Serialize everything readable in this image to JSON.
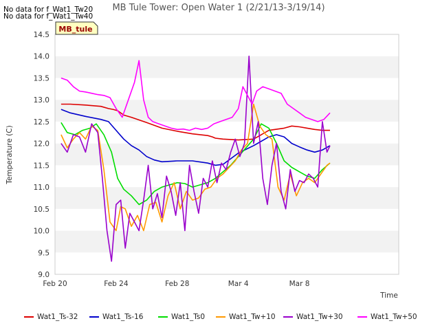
{
  "no_data_messages": [
    "No data for f_Wat1_Tw20",
    "No data for f_Wat1_Tw40"
  ],
  "site_badge": "MB_tule",
  "chart_data": {
    "type": "line",
    "title": "MB Tule Tower: Open Water 1 (2/21/13-3/19/14)",
    "xlabel": "Time",
    "ylabel": "Temperature (C)",
    "xlim": [
      0,
      22.5
    ],
    "ylim": [
      9.0,
      14.5
    ],
    "x_ticks": [
      {
        "value": 0,
        "label": "Feb 20"
      },
      {
        "value": 4,
        "label": "Feb 24"
      },
      {
        "value": 8,
        "label": "Feb 28"
      },
      {
        "value": 12,
        "label": "Mar 4"
      },
      {
        "value": 16,
        "label": "Mar 8"
      }
    ],
    "y_ticks": [
      9.0,
      9.5,
      10.0,
      10.5,
      11.0,
      11.5,
      12.0,
      12.5,
      13.0,
      13.5,
      14.0,
      14.5
    ],
    "grid": "horizontal bands",
    "legend_position": "bottom",
    "series": [
      {
        "name": "Wat1_Ts-32",
        "color": "#dd0000",
        "x": [
          0.4,
          1,
          2,
          3,
          3.5,
          3.8,
          4.1,
          4.5,
          5,
          6,
          7,
          8,
          9,
          10,
          10.3,
          10.5,
          11,
          12,
          13,
          14,
          15,
          15.5,
          16,
          16.5,
          17,
          17.5,
          18
        ],
        "y": [
          12.9,
          12.9,
          12.88,
          12.85,
          12.8,
          12.78,
          12.75,
          12.65,
          12.6,
          12.48,
          12.35,
          12.28,
          12.22,
          12.18,
          12.15,
          12.12,
          12.1,
          12.08,
          12.1,
          12.3,
          12.35,
          12.4,
          12.38,
          12.35,
          12.32,
          12.3,
          12.3
        ]
      },
      {
        "name": "Wat1_Ts-16",
        "color": "#0000cc",
        "x": [
          0.4,
          1,
          2,
          3,
          3.5,
          4,
          4.5,
          5,
          5.5,
          6,
          6.5,
          7,
          8,
          9,
          10,
          10.5,
          11,
          12,
          13,
          13.5,
          14,
          14.5,
          15,
          15.5,
          16,
          16.5,
          17,
          17.5,
          18
        ],
        "y": [
          12.78,
          12.7,
          12.62,
          12.55,
          12.5,
          12.3,
          12.1,
          11.95,
          11.85,
          11.7,
          11.62,
          11.58,
          11.6,
          11.6,
          11.55,
          11.5,
          11.52,
          11.78,
          11.95,
          12.05,
          12.15,
          12.2,
          12.15,
          12.0,
          11.92,
          11.85,
          11.8,
          11.85,
          11.95
        ]
      },
      {
        "name": "Wat1_Ts0",
        "color": "#00dd00",
        "x": [
          0.4,
          0.8,
          1.3,
          1.8,
          2.3,
          2.7,
          3.2,
          3.7,
          4.1,
          4.5,
          5,
          5.5,
          6,
          6.5,
          7,
          7.5,
          8,
          8.5,
          9,
          9.5,
          10,
          10.5,
          11,
          11.5,
          12,
          12.5,
          13,
          13.5,
          14,
          14.5,
          15,
          15.5,
          16,
          16.5,
          17,
          17.5,
          18
        ],
        "y": [
          12.48,
          12.25,
          12.2,
          12.3,
          12.35,
          12.45,
          12.2,
          11.8,
          11.2,
          10.95,
          10.8,
          10.6,
          10.7,
          10.9,
          11.0,
          11.05,
          11.1,
          11.08,
          11.0,
          11.05,
          11.1,
          11.2,
          11.35,
          11.5,
          11.7,
          11.9,
          12.1,
          12.45,
          12.35,
          12.0,
          11.6,
          11.45,
          11.35,
          11.25,
          11.2,
          11.4,
          11.55
        ]
      },
      {
        "name": "Wat1_Tw+10",
        "color": "#ff9900",
        "x": [
          0.4,
          0.8,
          1.2,
          1.6,
          2,
          2.4,
          2.8,
          3.2,
          3.6,
          4,
          4.3,
          4.6,
          5,
          5.4,
          5.8,
          6.2,
          6.6,
          7,
          7.4,
          7.8,
          8.2,
          8.6,
          9,
          9.4,
          9.8,
          10.2,
          10.6,
          11,
          11.4,
          11.8,
          12.2,
          12.6,
          13,
          13.4,
          13.8,
          14.2,
          14.6,
          15,
          15.4,
          15.8,
          16.2,
          16.6,
          17,
          17.4,
          17.8,
          18
        ],
        "y": [
          12.2,
          11.9,
          12.1,
          12.25,
          12.1,
          12.4,
          12.3,
          11.4,
          10.2,
          10.0,
          10.55,
          10.5,
          10.1,
          10.35,
          10.0,
          10.6,
          10.65,
          10.2,
          10.8,
          11.1,
          10.5,
          10.9,
          10.7,
          10.75,
          10.95,
          11.0,
          11.2,
          11.3,
          11.45,
          11.6,
          11.85,
          12.0,
          12.9,
          12.4,
          12.2,
          12.1,
          11.0,
          10.7,
          11.3,
          10.8,
          11.1,
          11.2,
          11.1,
          11.3,
          11.5,
          11.55
        ]
      },
      {
        "name": "Wat1_Tw+30",
        "color": "#9900cc",
        "x": [
          0.4,
          0.8,
          1.2,
          1.6,
          2,
          2.4,
          2.8,
          3.1,
          3.4,
          3.7,
          4,
          4.3,
          4.6,
          4.9,
          5.2,
          5.5,
          5.8,
          6.1,
          6.4,
          6.7,
          7,
          7.3,
          7.6,
          7.9,
          8.2,
          8.5,
          8.8,
          9.1,
          9.4,
          9.7,
          10,
          10.3,
          10.6,
          10.9,
          11.2,
          11.5,
          11.8,
          12.1,
          12.4,
          12.7,
          13,
          13.3,
          13.6,
          13.9,
          14.2,
          14.5,
          14.8,
          15.1,
          15.4,
          15.7,
          16,
          16.3,
          16.6,
          16.9,
          17.2,
          17.5,
          17.8,
          18
        ],
        "y": [
          12.0,
          11.8,
          12.2,
          12.15,
          11.8,
          12.45,
          12.25,
          11.2,
          10.0,
          9.3,
          10.6,
          10.7,
          9.6,
          10.4,
          10.2,
          10.0,
          10.7,
          11.5,
          10.5,
          10.85,
          10.3,
          11.25,
          10.9,
          10.35,
          11.1,
          10.0,
          11.5,
          10.9,
          10.4,
          11.2,
          11.0,
          11.6,
          11.1,
          11.55,
          11.4,
          11.8,
          12.1,
          11.7,
          12.0,
          14.0,
          12.0,
          12.5,
          11.2,
          10.6,
          11.5,
          12.0,
          10.9,
          10.5,
          11.4,
          10.9,
          11.15,
          11.1,
          11.3,
          11.2,
          11.0,
          12.5,
          11.8,
          11.95
        ]
      },
      {
        "name": "Wat1_Tw+50",
        "color": "#ff00ff",
        "x": [
          0.4,
          0.8,
          1.2,
          1.6,
          2,
          2.4,
          2.8,
          3.2,
          3.6,
          4,
          4.4,
          4.8,
          5.2,
          5.5,
          5.8,
          6.1,
          6.4,
          6.8,
          7.2,
          7.6,
          8,
          8.4,
          8.8,
          9.2,
          9.6,
          10,
          10.4,
          10.8,
          11.2,
          11.6,
          12,
          12.3,
          12.6,
          12.9,
          13.2,
          13.6,
          14,
          14.4,
          14.8,
          15.2,
          15.6,
          16,
          16.4,
          16.8,
          17.2,
          17.6,
          18
        ],
        "y": [
          13.5,
          13.45,
          13.3,
          13.2,
          13.18,
          13.15,
          13.12,
          13.1,
          13.05,
          12.8,
          12.6,
          13.0,
          13.4,
          13.9,
          13.0,
          12.6,
          12.5,
          12.45,
          12.4,
          12.35,
          12.32,
          12.33,
          12.3,
          12.35,
          12.32,
          12.35,
          12.45,
          12.5,
          12.55,
          12.6,
          12.8,
          13.3,
          13.1,
          12.9,
          13.2,
          13.3,
          13.25,
          13.2,
          13.15,
          12.9,
          12.8,
          12.7,
          12.6,
          12.55,
          12.5,
          12.55,
          12.7
        ]
      }
    ]
  }
}
